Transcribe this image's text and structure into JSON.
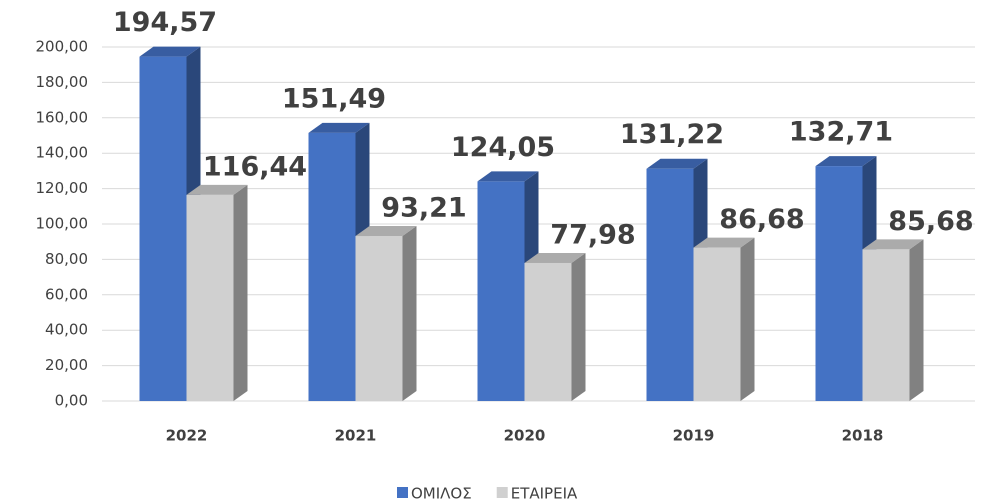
{
  "chart_data": {
    "type": "bar3d",
    "categories": [
      "2022",
      "2021",
      "2020",
      "2019",
      "2018"
    ],
    "series": [
      {
        "name": "ΟΜΙΛΟΣ",
        "color": "#4472c4",
        "values": [
          194.57,
          151.49,
          124.05,
          131.22,
          132.71
        ],
        "value_labels": [
          "194,57",
          "151,49",
          "124,05",
          "131,22",
          "132,71"
        ]
      },
      {
        "name": "ΕΤΑΙΡΕΙΑ",
        "color": "#d0d0d0",
        "values": [
          116.44,
          93.21,
          77.98,
          86.68,
          85.68
        ],
        "value_labels": [
          "116,44",
          "93,21",
          "77,98",
          "86,68",
          "85,68"
        ]
      }
    ],
    "ylim": [
      0,
      200
    ],
    "yticks": [
      {
        "value": 0,
        "label": "0,00"
      },
      {
        "value": 20,
        "label": "20,00"
      },
      {
        "value": 40,
        "label": "40,00"
      },
      {
        "value": 60,
        "label": "60,00"
      },
      {
        "value": 80,
        "label": "80,00"
      },
      {
        "value": 100,
        "label": "100,00"
      },
      {
        "value": 120,
        "label": "120,00"
      },
      {
        "value": 140,
        "label": "140,00"
      },
      {
        "value": 160,
        "label": "160,00"
      },
      {
        "value": 180,
        "label": "180,00"
      },
      {
        "value": 200,
        "label": "200,00"
      }
    ],
    "grid": true,
    "legend": "bottom"
  }
}
